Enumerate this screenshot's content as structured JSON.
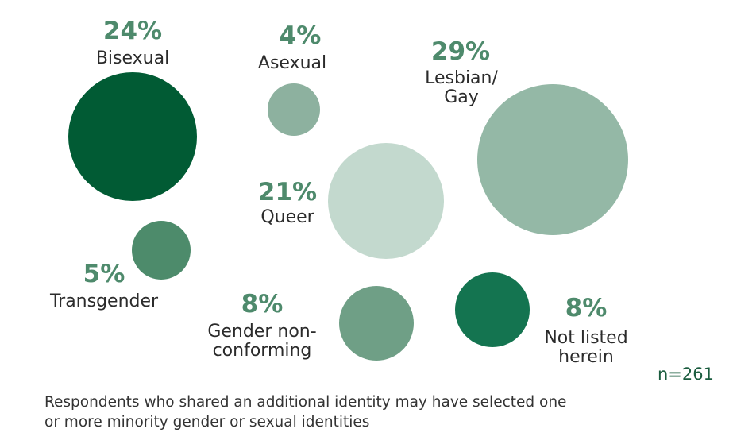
{
  "chart_data": {
    "type": "bubble",
    "title": "",
    "sample_size": "n=261",
    "items": [
      {
        "label": [
          "Bisexual"
        ],
        "percent_text": "24%",
        "value": 24,
        "color": "#015b34"
      },
      {
        "label": [
          "Asexual"
        ],
        "percent_text": "4%",
        "value": 4,
        "color": "#8db19f"
      },
      {
        "label": [
          "Lesbian/",
          "Gay"
        ],
        "percent_text": "29%",
        "value": 29,
        "color": "#94b8a6"
      },
      {
        "label": [
          "Queer"
        ],
        "percent_text": "21%",
        "value": 21,
        "color": "#c3d9ce"
      },
      {
        "label": [
          "Transgender"
        ],
        "percent_text": "5%",
        "value": 5,
        "color": "#4d8b6b"
      },
      {
        "label": [
          "Gender non-",
          "conforming"
        ],
        "percent_text": "8%",
        "value": 8,
        "color": "#6f9f86"
      },
      {
        "label": [
          "Not listed",
          "herein"
        ],
        "percent_text": "8%",
        "value": 8,
        "color": "#147450"
      }
    ]
  },
  "footnote": {
    "lines": [
      "Respondents who shared an additional identity may have selected one",
      "or more minority gender or sexual identities"
    ]
  }
}
